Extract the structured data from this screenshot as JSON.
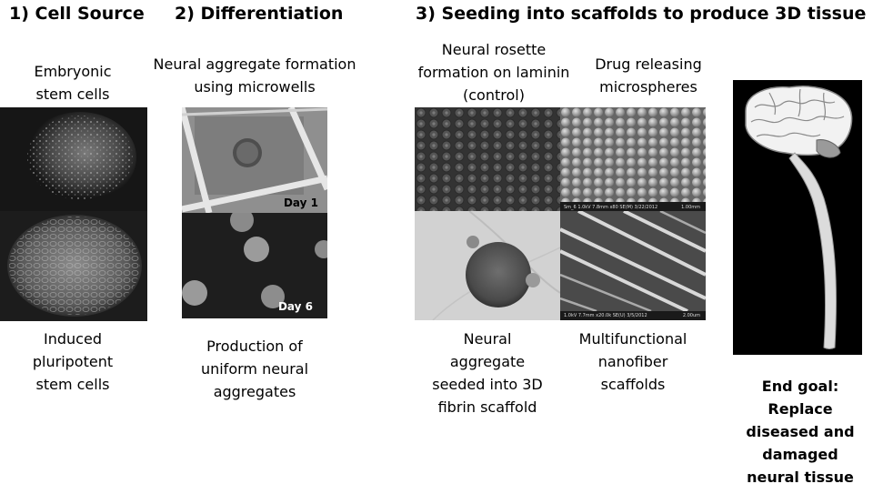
{
  "headings": {
    "cell_source": "1) Cell Source",
    "differentiation": "2) Differentiation",
    "seeding": "3) Seeding into scaffolds to produce 3D tissue"
  },
  "captions": {
    "embryonic": [
      "Embryonic",
      "stem cells"
    ],
    "ipsc": [
      "Induced",
      "pluripotent",
      "stem cells"
    ],
    "aggregate_formation": [
      "Neural aggregate formation",
      "using microwells"
    ],
    "production": [
      "Production of",
      "uniform neural",
      "aggregates"
    ],
    "rosette": [
      "Neural rosette",
      "formation on laminin",
      "(control)"
    ],
    "drug": [
      "Drug releasing",
      "microspheres"
    ],
    "seeded": [
      "Neural",
      "aggregate",
      "seeded into 3D",
      "fibrin scaffold"
    ],
    "nanofiber": [
      "Multifunctional",
      "nanofiber",
      "scaffolds"
    ],
    "end_goal": [
      "End goal:",
      "Replace",
      "diseased and",
      "damaged",
      "neural tissue"
    ]
  },
  "day_labels": {
    "day1": "Day 1",
    "day6": "Day 6"
  },
  "sem_labels": {
    "microspheres": "Sm_6 1.0kV 7.8mm x80 SE(M) 3/22/2012",
    "microspheres_scale": "1.00mm",
    "nanofibers": "1.0kV 7.7mm x20.0k SE(U) 3/5/2012",
    "nanofibers_scale": "2.00um"
  },
  "icons": [
    "brain-spinal-cord-illustration"
  ]
}
